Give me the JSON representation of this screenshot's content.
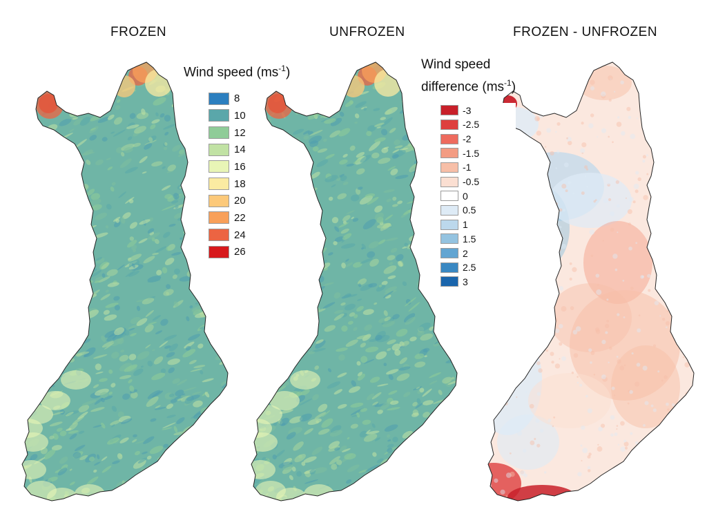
{
  "panels": [
    {
      "title": "FROZEN",
      "kind": "speed"
    },
    {
      "title": "UNFROZEN",
      "kind": "speed"
    },
    {
      "title": "FROZEN - UNFROZEN",
      "kind": "difference"
    }
  ],
  "legend_speed": {
    "title": "Wind speed (ms",
    "title_sup": "-1",
    "title_end": ")",
    "items": [
      {
        "label": "8",
        "color": "#2c7fbf"
      },
      {
        "label": "10",
        "color": "#5aa7aa"
      },
      {
        "label": "12",
        "color": "#8fcc98"
      },
      {
        "label": "14",
        "color": "#c1e2a4"
      },
      {
        "label": "16",
        "color": "#e8f5b6"
      },
      {
        "label": "18",
        "color": "#fbeba2"
      },
      {
        "label": "20",
        "color": "#fcc97a"
      },
      {
        "label": "22",
        "color": "#f8a05a"
      },
      {
        "label": "24",
        "color": "#ec6442"
      },
      {
        "label": "26",
        "color": "#d7191c"
      }
    ]
  },
  "legend_diff": {
    "title_line1": "Wind speed",
    "title_line2": "difference (ms",
    "title_sup": "-1",
    "title_end": ")",
    "items": [
      {
        "label": "-3",
        "color": "#c8202a"
      },
      {
        "label": "-2.5",
        "color": "#de3f3e"
      },
      {
        "label": "-2",
        "color": "#ee6b5e"
      },
      {
        "label": "-1.5",
        "color": "#f39c83"
      },
      {
        "label": "-1",
        "color": "#f7bfa8"
      },
      {
        "label": "-0.5",
        "color": "#fbdfd2"
      },
      {
        "label": "0",
        "color": "#ffffff"
      },
      {
        "label": "0.5",
        "color": "#deebf6"
      },
      {
        "label": "1",
        "color": "#bcd8ec"
      },
      {
        "label": "1.5",
        "color": "#94c3e0"
      },
      {
        "label": "2",
        "color": "#62a5d2"
      },
      {
        "label": "2.5",
        "color": "#3a88c2"
      },
      {
        "label": "3",
        "color": "#1a65ac"
      }
    ]
  }
}
